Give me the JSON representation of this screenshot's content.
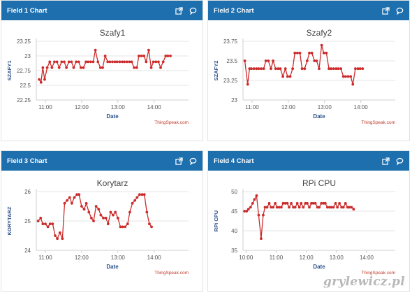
{
  "panels": [
    {
      "header": "Field 1 Chart",
      "icons": [
        "external-link-icon",
        "comment-icon"
      ]
    },
    {
      "header": "Field 2 Chart",
      "icons": [
        "external-link-icon",
        "comment-icon"
      ]
    },
    {
      "header": "Field 3 Chart",
      "icons": [
        "external-link-icon",
        "comment-icon"
      ]
    },
    {
      "header": "Field 4 Chart",
      "icons": [
        "external-link-icon",
        "comment-icon"
      ]
    }
  ],
  "credit": "ThingSpeak.com",
  "watermark": "grylewicz.pl",
  "colors": {
    "header": "#1e6fae",
    "series": "#cc2b2b",
    "title": "#444444",
    "axis_label": "#2a4f8a"
  },
  "chart_data": [
    {
      "type": "line",
      "title": "Szafy1",
      "xlabel": "Date",
      "ylabel": "SZAFY1",
      "ylim": [
        22.25,
        23.25
      ],
      "yticks": [
        "22.25",
        "22.5",
        "22.75",
        "23",
        "23.25"
      ],
      "xlim": [
        10.75,
        14.95
      ],
      "xticks": [
        "11:00",
        "12:00",
        "13:00",
        "14:00"
      ],
      "series": [
        {
          "values": [
            [
              10.83,
              22.6
            ],
            [
              10.88,
              22.55
            ],
            [
              10.93,
              22.8
            ],
            [
              10.98,
              22.6
            ],
            [
              11.05,
              22.8
            ],
            [
              11.12,
              22.9
            ],
            [
              11.18,
              22.8
            ],
            [
              11.25,
              22.9
            ],
            [
              11.32,
              22.9
            ],
            [
              11.38,
              22.8
            ],
            [
              11.45,
              22.9
            ],
            [
              11.52,
              22.9
            ],
            [
              11.58,
              22.8
            ],
            [
              11.65,
              22.9
            ],
            [
              11.72,
              22.9
            ],
            [
              11.78,
              22.8
            ],
            [
              11.85,
              22.9
            ],
            [
              11.92,
              22.9
            ],
            [
              11.98,
              22.8
            ],
            [
              12.05,
              22.8
            ],
            [
              12.12,
              22.9
            ],
            [
              12.18,
              22.9
            ],
            [
              12.25,
              22.9
            ],
            [
              12.32,
              22.9
            ],
            [
              12.38,
              23.1
            ],
            [
              12.45,
              22.9
            ],
            [
              12.52,
              22.8
            ],
            [
              12.58,
              22.8
            ],
            [
              12.65,
              23.0
            ],
            [
              12.72,
              22.9
            ],
            [
              12.78,
              22.9
            ],
            [
              12.85,
              22.9
            ],
            [
              12.92,
              22.9
            ],
            [
              12.98,
              22.9
            ],
            [
              13.05,
              22.9
            ],
            [
              13.12,
              22.9
            ],
            [
              13.18,
              22.9
            ],
            [
              13.25,
              22.9
            ],
            [
              13.32,
              22.9
            ],
            [
              13.38,
              22.9
            ],
            [
              13.45,
              22.8
            ],
            [
              13.52,
              22.8
            ],
            [
              13.58,
              23.0
            ],
            [
              13.65,
              23.0
            ],
            [
              13.72,
              23.0
            ],
            [
              13.78,
              22.9
            ],
            [
              13.85,
              23.1
            ],
            [
              13.92,
              22.8
            ],
            [
              13.98,
              22.9
            ],
            [
              14.05,
              22.9
            ],
            [
              14.12,
              22.9
            ],
            [
              14.18,
              22.8
            ],
            [
              14.25,
              22.9
            ],
            [
              14.32,
              23.0
            ],
            [
              14.38,
              23.0
            ],
            [
              14.45,
              23.0
            ]
          ]
        }
      ]
    },
    {
      "type": "line",
      "title": "Szafy2",
      "xlabel": "Date",
      "ylabel": "SZAFY2",
      "ylim": [
        23,
        23.75
      ],
      "yticks": [
        "23",
        "23.25",
        "23.5",
        "23.75"
      ],
      "xlim": [
        10.75,
        14.95
      ],
      "xticks": [
        "11:00",
        "12:00",
        "13:00",
        "14:00"
      ],
      "series": [
        {
          "values": [
            [
              10.8,
              23.5
            ],
            [
              10.88,
              23.2
            ],
            [
              10.93,
              23.4
            ],
            [
              10.98,
              23.4
            ],
            [
              11.05,
              23.4
            ],
            [
              11.12,
              23.4
            ],
            [
              11.18,
              23.4
            ],
            [
              11.25,
              23.4
            ],
            [
              11.32,
              23.4
            ],
            [
              11.38,
              23.5
            ],
            [
              11.45,
              23.5
            ],
            [
              11.52,
              23.4
            ],
            [
              11.58,
              23.5
            ],
            [
              11.65,
              23.4
            ],
            [
              11.72,
              23.4
            ],
            [
              11.78,
              23.4
            ],
            [
              11.85,
              23.3
            ],
            [
              11.92,
              23.4
            ],
            [
              11.98,
              23.3
            ],
            [
              12.05,
              23.3
            ],
            [
              12.12,
              23.4
            ],
            [
              12.18,
              23.6
            ],
            [
              12.25,
              23.6
            ],
            [
              12.32,
              23.6
            ],
            [
              12.38,
              23.4
            ],
            [
              12.45,
              23.4
            ],
            [
              12.52,
              23.5
            ],
            [
              12.58,
              23.6
            ],
            [
              12.65,
              23.6
            ],
            [
              12.72,
              23.5
            ],
            [
              12.78,
              23.5
            ],
            [
              12.85,
              23.4
            ],
            [
              12.92,
              23.7
            ],
            [
              12.98,
              23.6
            ],
            [
              13.05,
              23.6
            ],
            [
              13.12,
              23.4
            ],
            [
              13.18,
              23.4
            ],
            [
              13.25,
              23.4
            ],
            [
              13.32,
              23.4
            ],
            [
              13.38,
              23.4
            ],
            [
              13.45,
              23.4
            ],
            [
              13.52,
              23.3
            ],
            [
              13.58,
              23.3
            ],
            [
              13.65,
              23.3
            ],
            [
              13.72,
              23.3
            ],
            [
              13.78,
              23.2
            ],
            [
              13.85,
              23.4
            ],
            [
              13.92,
              23.4
            ],
            [
              13.98,
              23.4
            ],
            [
              14.05,
              23.4
            ]
          ]
        }
      ]
    },
    {
      "type": "line",
      "title": "Korytarz",
      "xlabel": "Date",
      "ylabel": "KORYTARZ",
      "ylim": [
        24,
        26
      ],
      "yticks": [
        "24",
        "25",
        "26"
      ],
      "xlim": [
        10.75,
        14.95
      ],
      "xticks": [
        "11:00",
        "12:00",
        "13:00",
        "14:00"
      ],
      "series": [
        {
          "values": [
            [
              10.8,
              25.0
            ],
            [
              10.87,
              25.1
            ],
            [
              10.93,
              24.9
            ],
            [
              11.0,
              24.9
            ],
            [
              11.07,
              24.8
            ],
            [
              11.13,
              24.9
            ],
            [
              11.2,
              24.9
            ],
            [
              11.27,
              24.5
            ],
            [
              11.33,
              24.4
            ],
            [
              11.4,
              24.6
            ],
            [
              11.47,
              24.4
            ],
            [
              11.53,
              25.6
            ],
            [
              11.6,
              25.7
            ],
            [
              11.67,
              25.8
            ],
            [
              11.73,
              25.6
            ],
            [
              11.8,
              25.8
            ],
            [
              11.87,
              25.9
            ],
            [
              11.93,
              25.9
            ],
            [
              12.0,
              25.5
            ],
            [
              12.07,
              25.4
            ],
            [
              12.13,
              25.6
            ],
            [
              12.2,
              25.3
            ],
            [
              12.27,
              25.1
            ],
            [
              12.33,
              25.0
            ],
            [
              12.4,
              25.5
            ],
            [
              12.47,
              25.4
            ],
            [
              12.53,
              25.2
            ],
            [
              12.6,
              25.1
            ],
            [
              12.67,
              25.1
            ],
            [
              12.73,
              24.9
            ],
            [
              12.8,
              25.3
            ],
            [
              12.87,
              25.2
            ],
            [
              12.93,
              25.3
            ],
            [
              13.0,
              25.1
            ],
            [
              13.07,
              24.8
            ],
            [
              13.13,
              24.8
            ],
            [
              13.2,
              24.8
            ],
            [
              13.27,
              24.9
            ],
            [
              13.33,
              25.3
            ],
            [
              13.4,
              25.6
            ],
            [
              13.47,
              25.7
            ],
            [
              13.53,
              25.8
            ],
            [
              13.6,
              25.9
            ],
            [
              13.67,
              25.9
            ],
            [
              13.73,
              25.9
            ],
            [
              13.8,
              25.3
            ],
            [
              13.87,
              24.9
            ],
            [
              13.93,
              24.8
            ]
          ]
        }
      ]
    },
    {
      "type": "line",
      "title": "RPi CPU",
      "xlabel": "Date",
      "ylabel": "RPi CPU",
      "ylim": [
        35,
        50
      ],
      "yticks": [
        "35",
        "40",
        "45",
        "50"
      ],
      "xlim": [
        9.9,
        14.95
      ],
      "xticks": [
        "10:00",
        "11:00",
        "12:00",
        "13:00",
        "14:00"
      ],
      "series": [
        {
          "values": [
            [
              9.95,
              45
            ],
            [
              10.02,
              45
            ],
            [
              10.08,
              45.5
            ],
            [
              10.15,
              46
            ],
            [
              10.22,
              47
            ],
            [
              10.28,
              48
            ],
            [
              10.35,
              49
            ],
            [
              10.42,
              44
            ],
            [
              10.5,
              38
            ],
            [
              10.57,
              44
            ],
            [
              10.63,
              46
            ],
            [
              10.7,
              46
            ],
            [
              10.77,
              47
            ],
            [
              10.83,
              46
            ],
            [
              10.9,
              46
            ],
            [
              10.97,
              47
            ],
            [
              11.03,
              46
            ],
            [
              11.1,
              46
            ],
            [
              11.17,
              46
            ],
            [
              11.23,
              47
            ],
            [
              11.3,
              47
            ],
            [
              11.37,
              47
            ],
            [
              11.43,
              46
            ],
            [
              11.5,
              47
            ],
            [
              11.57,
              46
            ],
            [
              11.63,
              46
            ],
            [
              11.7,
              47
            ],
            [
              11.77,
              46
            ],
            [
              11.83,
              47
            ],
            [
              11.9,
              46
            ],
            [
              11.97,
              47
            ],
            [
              12.03,
              47
            ],
            [
              12.1,
              46
            ],
            [
              12.17,
              47
            ],
            [
              12.23,
              47
            ],
            [
              12.3,
              47
            ],
            [
              12.37,
              46
            ],
            [
              12.43,
              46
            ],
            [
              12.5,
              47
            ],
            [
              12.57,
              47
            ],
            [
              12.63,
              47
            ],
            [
              12.7,
              46
            ],
            [
              12.77,
              46
            ],
            [
              12.83,
              46
            ],
            [
              12.9,
              46
            ],
            [
              12.97,
              47
            ],
            [
              13.03,
              46
            ],
            [
              13.1,
              47
            ],
            [
              13.17,
              46
            ],
            [
              13.23,
              46
            ],
            [
              13.3,
              47
            ],
            [
              13.37,
              46
            ],
            [
              13.43,
              46
            ],
            [
              13.5,
              46
            ],
            [
              13.57,
              45.5
            ]
          ]
        }
      ]
    }
  ]
}
